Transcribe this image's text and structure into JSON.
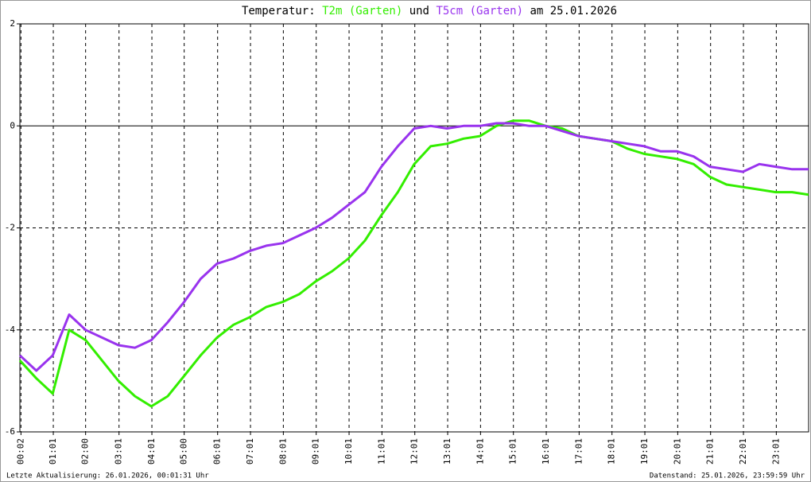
{
  "chart_data": {
    "type": "line",
    "title": "Temperatur:",
    "title_joiner": "und",
    "title_date": "am 25.01.2026",
    "footer_left": "Letzte Aktualisierung: 26.01.2026, 00:01:31 Uhr",
    "footer_right": "Datenstand: 25.01.2026, 23:59:59 Uhr",
    "x": [
      0,
      0.5,
      1,
      1.5,
      2,
      2.5,
      3,
      3.5,
      4,
      4.5,
      5,
      5.5,
      6,
      6.5,
      7,
      7.5,
      8,
      8.5,
      9,
      9.5,
      10,
      10.5,
      11,
      11.5,
      12,
      12.5,
      13,
      13.5,
      14,
      14.5,
      15,
      15.5,
      16,
      16.5,
      17,
      17.5,
      18,
      18.5,
      19,
      19.5,
      20,
      20.5,
      21,
      21.5,
      22,
      22.5,
      23,
      23.5,
      24
    ],
    "series": [
      {
        "name": "T2m (Garten)",
        "color": "#33ee00",
        "values": [
          -4.6,
          -4.95,
          -5.25,
          -4.0,
          -4.2,
          -4.6,
          -5.0,
          -5.3,
          -5.5,
          -5.3,
          -4.9,
          -4.5,
          -4.15,
          -3.9,
          -3.75,
          -3.55,
          -3.45,
          -3.3,
          -3.05,
          -2.85,
          -2.6,
          -2.25,
          -1.75,
          -1.3,
          -0.75,
          -0.4,
          -0.35,
          -0.25,
          -0.2,
          0.0,
          0.1,
          0.1,
          0.0,
          -0.05,
          -0.2,
          -0.25,
          -0.3,
          -0.45,
          -0.55,
          -0.6,
          -0.65,
          -0.75,
          -1.0,
          -1.15,
          -1.2,
          -1.25,
          -1.3,
          -1.3,
          -1.35
        ]
      },
      {
        "name": "T5cm (Garten)",
        "color": "#9933ee",
        "values": [
          -4.5,
          -4.8,
          -4.5,
          -3.7,
          -4.0,
          -4.15,
          -4.3,
          -4.35,
          -4.2,
          -3.85,
          -3.45,
          -3.0,
          -2.7,
          -2.6,
          -2.45,
          -2.35,
          -2.3,
          -2.15,
          -2.0,
          -1.8,
          -1.55,
          -1.3,
          -0.8,
          -0.4,
          -0.05,
          0.0,
          -0.05,
          0.0,
          0.0,
          0.05,
          0.05,
          0.0,
          0.0,
          -0.1,
          -0.2,
          -0.25,
          -0.3,
          -0.35,
          -0.4,
          -0.5,
          -0.5,
          -0.6,
          -0.8,
          -0.85,
          -0.9,
          -0.75,
          -0.8,
          -0.85,
          -0.85
        ]
      }
    ],
    "xlim": [
      0,
      24
    ],
    "xticks": [
      {
        "value": 0.033,
        "label": "00:02"
      },
      {
        "value": 1.017,
        "label": "01:01"
      },
      {
        "value": 2,
        "label": "02:00"
      },
      {
        "value": 3.017,
        "label": "03:01"
      },
      {
        "value": 4.017,
        "label": "04:01"
      },
      {
        "value": 5,
        "label": "05:00"
      },
      {
        "value": 6.017,
        "label": "06:01"
      },
      {
        "value": 7.017,
        "label": "07:01"
      },
      {
        "value": 8.017,
        "label": "08:01"
      },
      {
        "value": 9.017,
        "label": "09:01"
      },
      {
        "value": 10.017,
        "label": "10:01"
      },
      {
        "value": 11.017,
        "label": "11:01"
      },
      {
        "value": 12.017,
        "label": "12:01"
      },
      {
        "value": 13.017,
        "label": "13:01"
      },
      {
        "value": 14.017,
        "label": "14:01"
      },
      {
        "value": 15.017,
        "label": "15:01"
      },
      {
        "value": 16.017,
        "label": "16:01"
      },
      {
        "value": 17.017,
        "label": "17:01"
      },
      {
        "value": 18.017,
        "label": "18:01"
      },
      {
        "value": 19.017,
        "label": "19:01"
      },
      {
        "value": 20.017,
        "label": "20:01"
      },
      {
        "value": 21.017,
        "label": "21:01"
      },
      {
        "value": 22.017,
        "label": "22:01"
      },
      {
        "value": 23.017,
        "label": "23:01"
      }
    ],
    "ylim": [
      -6,
      2
    ],
    "yticks": [
      -6,
      -4,
      -2,
      0,
      2
    ],
    "grid": true
  }
}
